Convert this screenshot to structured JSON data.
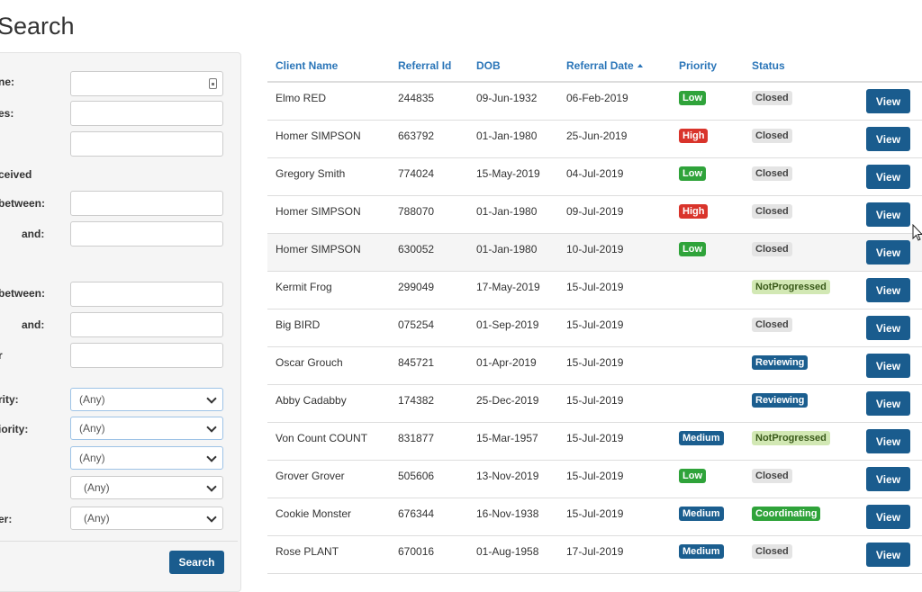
{
  "page": {
    "title": "Search"
  },
  "filters": {
    "labels": [
      "ne:",
      "es:",
      "ceived",
      "between:",
      "and:",
      "between:",
      "and:",
      "r",
      "rity:",
      "iority:",
      "er:"
    ],
    "selects": [
      "(Any)",
      "(Any)",
      "(Any)",
      "(Any)",
      "(Any)"
    ],
    "search_label": "Search"
  },
  "table": {
    "headers": [
      "Client Name",
      "Referral Id",
      "DOB",
      "Referral Date",
      "Priority",
      "Status"
    ],
    "view_label": "View",
    "rows": [
      {
        "name": "Elmo RED",
        "id": "244835",
        "dob": "09-Jun-1932",
        "date": "06-Feb-2019",
        "priority": "Low",
        "status": "Closed"
      },
      {
        "name": "Homer SIMPSON",
        "id": "663792",
        "dob": "01-Jan-1980",
        "date": "25-Jun-2019",
        "priority": "High",
        "status": "Closed"
      },
      {
        "name": "Gregory Smith",
        "id": "774024",
        "dob": "15-May-2019",
        "date": "04-Jul-2019",
        "priority": "Low",
        "status": "Closed"
      },
      {
        "name": "Homer SIMPSON",
        "id": "788070",
        "dob": "01-Jan-1980",
        "date": "09-Jul-2019",
        "priority": "High",
        "status": "Closed"
      },
      {
        "name": "Homer SIMPSON",
        "id": "630052",
        "dob": "01-Jan-1980",
        "date": "10-Jul-2019",
        "priority": "Low",
        "status": "Closed"
      },
      {
        "name": "Kermit Frog",
        "id": "299049",
        "dob": "17-May-2019",
        "date": "15-Jul-2019",
        "priority": "",
        "status": "NotProgressed"
      },
      {
        "name": "Big BIRD",
        "id": "075254",
        "dob": "01-Sep-2019",
        "date": "15-Jul-2019",
        "priority": "",
        "status": "Closed"
      },
      {
        "name": "Oscar Grouch",
        "id": "845721",
        "dob": "01-Apr-2019",
        "date": "15-Jul-2019",
        "priority": "",
        "status": "Reviewing"
      },
      {
        "name": "Abby Cadabby",
        "id": "174382",
        "dob": "25-Dec-2019",
        "date": "15-Jul-2019",
        "priority": "",
        "status": "Reviewing"
      },
      {
        "name": "Von Count COUNT",
        "id": "831877",
        "dob": "15-Mar-1957",
        "date": "15-Jul-2019",
        "priority": "Medium",
        "status": "NotProgressed"
      },
      {
        "name": "Grover Grover",
        "id": "505606",
        "dob": "13-Nov-2019",
        "date": "15-Jul-2019",
        "priority": "Low",
        "status": "Closed"
      },
      {
        "name": "Cookie Monster",
        "id": "676344",
        "dob": "16-Nov-1938",
        "date": "15-Jul-2019",
        "priority": "Medium",
        "status": "Coordinating"
      },
      {
        "name": "Rose PLANT",
        "id": "670016",
        "dob": "01-Aug-1958",
        "date": "17-Jul-2019",
        "priority": "Medium",
        "status": "Closed"
      }
    ]
  },
  "colors": {
    "priority": {
      "Low": "#2fa33a",
      "High": "#d9342b",
      "Medium": "#1b5e8f"
    },
    "status": {
      "Closed": {
        "bg": "#e4e4e4",
        "fg": "#444444"
      },
      "NotProgressed": {
        "bg": "#d2e8b4",
        "fg": "#3a5a1a"
      },
      "Reviewing": {
        "bg": "#1b5e8f",
        "fg": "#ffffff"
      },
      "Coordinating": {
        "bg": "#2fa33a",
        "fg": "#ffffff"
      }
    }
  }
}
